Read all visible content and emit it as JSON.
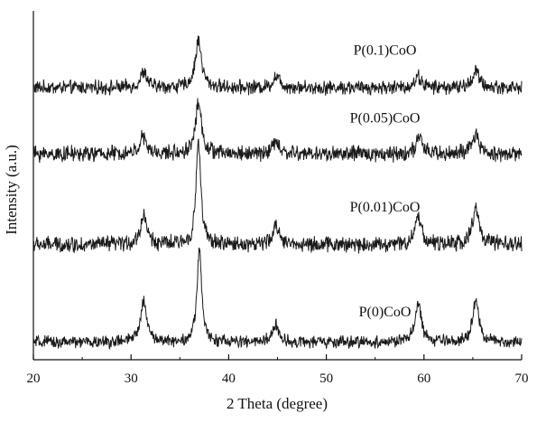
{
  "chart_data": {
    "type": "line",
    "title": "",
    "xlabel": "2 Theta (degree)",
    "ylabel": "Intensity (a.u.)",
    "xlim": [
      20,
      70
    ],
    "xticks": [
      20,
      30,
      40,
      50,
      60,
      70
    ],
    "y_ticks_shown": false,
    "grid": false,
    "legend": "none (series labelled inline above each curve)",
    "line_color": "#1a1a1a",
    "series": [
      {
        "name": "P(0.1)CoO",
        "offset": 0.78,
        "baseline": 0.0,
        "noise": 0.016,
        "peaks": [
          {
            "x": 31.3,
            "height": 0.045
          },
          {
            "x": 36.9,
            "height": 0.135
          },
          {
            "x": 44.9,
            "height": 0.035
          },
          {
            "x": 59.4,
            "height": 0.032
          },
          {
            "x": 65.3,
            "height": 0.05
          }
        ]
      },
      {
        "name": "P(0.05)CoO",
        "offset": 0.59,
        "baseline": 0.0,
        "noise": 0.018,
        "peaks": [
          {
            "x": 31.2,
            "height": 0.048
          },
          {
            "x": 36.9,
            "height": 0.145
          },
          {
            "x": 44.8,
            "height": 0.035
          },
          {
            "x": 59.5,
            "height": 0.045
          },
          {
            "x": 65.3,
            "height": 0.055
          }
        ]
      },
      {
        "name": "P(0.01)CoO",
        "offset": 0.33,
        "baseline": 0.0,
        "noise": 0.018,
        "peaks": [
          {
            "x": 31.3,
            "height": 0.085
          },
          {
            "x": 36.9,
            "height": 0.3
          },
          {
            "x": 44.9,
            "height": 0.055
          },
          {
            "x": 59.4,
            "height": 0.085
          },
          {
            "x": 65.3,
            "height": 0.11
          }
        ]
      },
      {
        "name": "P(0)CoO",
        "offset": 0.05,
        "baseline": 0.0,
        "noise": 0.014,
        "peaks": [
          {
            "x": 31.3,
            "height": 0.12
          },
          {
            "x": 37.0,
            "height": 0.27
          },
          {
            "x": 44.8,
            "height": 0.05
          },
          {
            "x": 59.4,
            "height": 0.11
          },
          {
            "x": 65.3,
            "height": 0.115
          }
        ]
      }
    ],
    "annotations": [
      {
        "text": "P(0.1)CoO",
        "x": 56.0,
        "y": 0.875
      },
      {
        "text": "P(0.05)CoO",
        "x": 56.0,
        "y": 0.68
      },
      {
        "text": "P(0.01)CoO",
        "x": 56.0,
        "y": 0.425
      },
      {
        "text": "P(0)CoO",
        "x": 56.0,
        "y": 0.125
      }
    ]
  }
}
